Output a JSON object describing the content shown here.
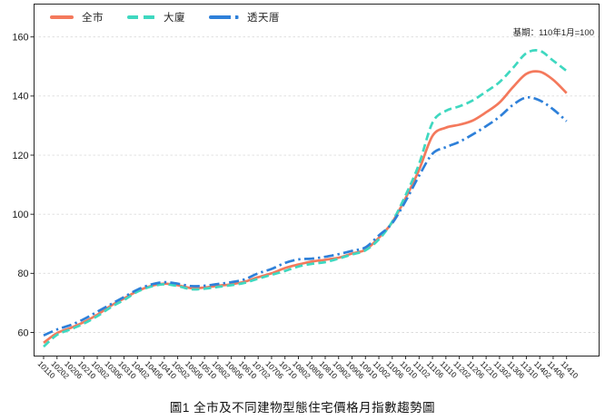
{
  "page": {
    "background": "#ffffff"
  },
  "colors": {
    "citywide": "#f4795c",
    "apartment_building": "#3fd8c0",
    "townhouse": "#2e80d9",
    "grid": "#dcdcdc",
    "spine": "#262626",
    "tick_text": "#1a1a1a"
  },
  "legend": {
    "items": [
      {
        "label": "全市",
        "color": "#f4795c",
        "style": "solid"
      },
      {
        "label": "大廈",
        "color": "#3fd8c0",
        "style": "dashed"
      },
      {
        "label": "透天厝",
        "color": "#2e80d9",
        "style": "dashdot"
      }
    ]
  },
  "annotation": {
    "base_period": "基期：110年1月=100"
  },
  "title": {
    "text": "圖1 全市及不同建物型態住宅價格月指數趨勢圖"
  },
  "chart_data": {
    "type": "line",
    "title": "圖1 全市及不同建物型態住宅價格月指數趨勢圖",
    "note": "基期：110年1月=100",
    "xlabel": "",
    "ylabel": "",
    "yticks": [
      60,
      80,
      100,
      120,
      140,
      160
    ],
    "ylim": [
      52,
      171
    ],
    "grid": "horizontal-dashed",
    "legend_position": "top-left-inside",
    "categories": [
      "10110",
      "10202",
      "10206",
      "10210",
      "10302",
      "10306",
      "10310",
      "10402",
      "10406",
      "10410",
      "10502",
      "10506",
      "10510",
      "10602",
      "10606",
      "10610",
      "10702",
      "10706",
      "10710",
      "10802",
      "10806",
      "10810",
      "10902",
      "10906",
      "10910",
      "11002",
      "11006",
      "11010",
      "11102",
      "11106",
      "11110",
      "11202",
      "11206",
      "11210",
      "11302",
      "11306",
      "11310",
      "11402",
      "11406",
      "11410"
    ],
    "series": [
      {
        "name": "全市",
        "key": "citywide",
        "color": "#f4795c",
        "dash": "solid",
        "values": [
          56.5,
          59.8,
          61.5,
          63.5,
          66,
          69,
          71.5,
          74,
          75.7,
          76.5,
          76,
          75,
          75.2,
          75.8,
          76.3,
          77.2,
          78.7,
          80,
          81.8,
          83,
          84,
          84.6,
          85.3,
          86.7,
          88,
          92,
          97.3,
          105.5,
          115,
          126.5,
          129.3,
          130.3,
          131.7,
          134.5,
          137.8,
          143,
          147.5,
          148.2,
          145.5,
          141
        ]
      },
      {
        "name": "大廈",
        "key": "apartment-building",
        "color": "#3fd8c0",
        "dash": "dashed",
        "values": [
          55.2,
          59.2,
          61,
          63,
          65.5,
          68.5,
          71,
          73.8,
          75.5,
          76.3,
          75.7,
          74.6,
          74.8,
          75.4,
          76,
          76.8,
          78.2,
          79.5,
          80.8,
          82.3,
          83.2,
          83.8,
          85,
          86.4,
          87.8,
          91.5,
          97.5,
          106.5,
          117,
          131,
          135,
          136.5,
          138.5,
          141.5,
          144.7,
          149.5,
          154.5,
          155.3,
          152,
          148.5
        ]
      },
      {
        "name": "透天厝",
        "key": "townhouse",
        "color": "#2e80d9",
        "dash": "dashdot",
        "values": [
          59,
          61,
          62.5,
          64.5,
          67,
          69.5,
          72,
          74.5,
          76.2,
          77,
          76.5,
          75.7,
          75.8,
          76.4,
          77,
          78,
          80,
          81.5,
          83.5,
          84.7,
          85,
          85.6,
          86.5,
          87.6,
          88.8,
          92.8,
          97,
          104.5,
          113,
          120.5,
          122.7,
          124.5,
          127,
          129.8,
          133,
          137,
          139.5,
          138.5,
          135.5,
          131.5
        ]
      }
    ]
  }
}
